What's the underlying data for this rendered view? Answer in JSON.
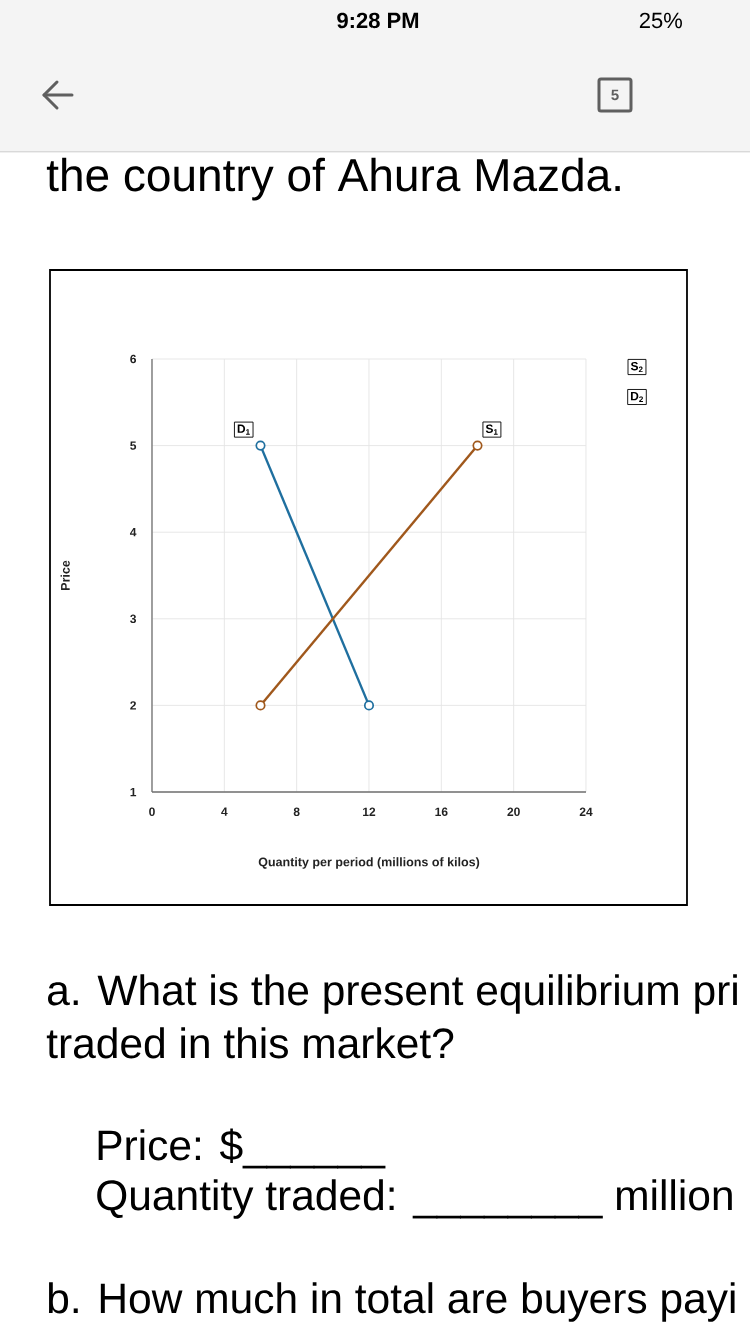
{
  "chart_data": {
    "type": "line",
    "xlabel": "Quantity per period (millions of kilos)",
    "ylabel": "Price",
    "series": [
      {
        "name": "D$_{1}$",
        "color": "#1f6f9f",
        "x": [
          6,
          12
        ],
        "values": [
          5,
          2
        ]
      },
      {
        "name": "S$_{1}$",
        "color": "#a0581c",
        "x": [
          6,
          18
        ],
        "values": [
          2,
          5
        ]
      }
    ],
    "xlim": [
      0,
      24
    ],
    "xticks": [
      0,
      4,
      8,
      12,
      16,
      20,
      24
    ],
    "ylim": [
      1,
      6
    ],
    "yticks": [
      1,
      2,
      3,
      4,
      5,
      6
    ],
    "grid": true,
    "marker": "circle",
    "line_style": "solid",
    "annotations": [
      "9:28 PM",
      "25%",
      "5",
      "the country of Ahura Mazda.",
      "S$_{2}$",
      "D$_{2}$",
      "a. What is the present equilibrium pri",
      "traded in this market?",
      "Price: $______",
      "Quantity traded: ________ million",
      "b. How much in total are buyers payi"
    ]
  }
}
